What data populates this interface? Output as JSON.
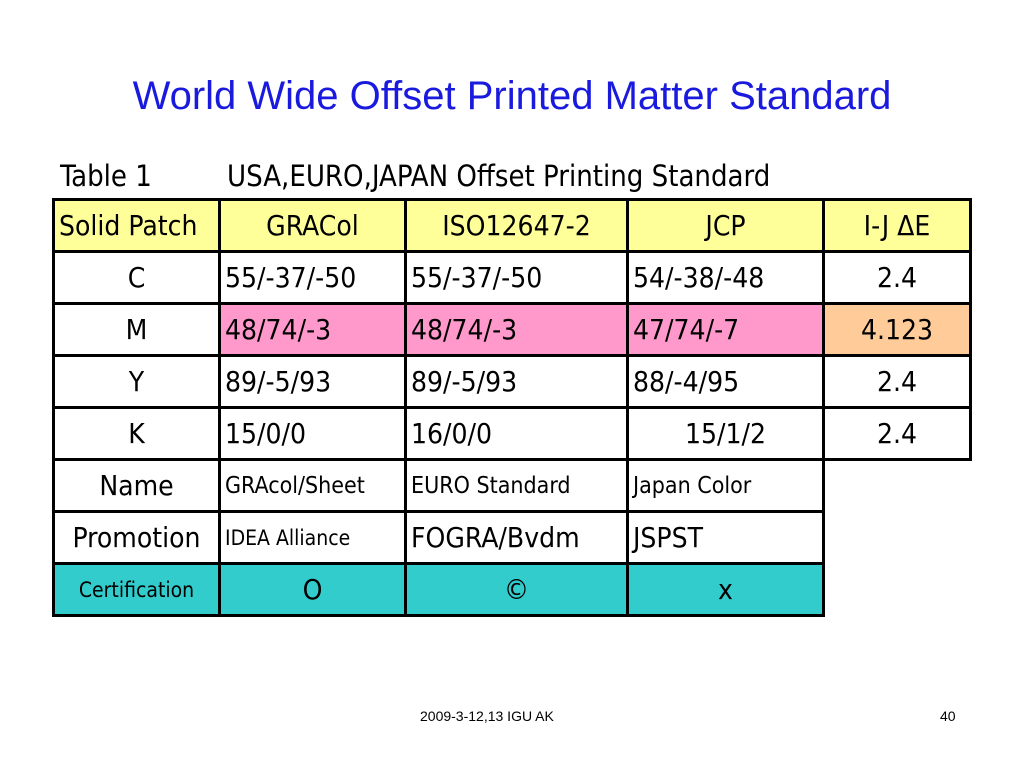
{
  "slide": {
    "title": "World Wide Offset Printed Matter Standard",
    "footer": "2009-3-12,13 IGU AK",
    "page_number": "40"
  },
  "table": {
    "caption_label": "Table 1",
    "caption_text": "USA,EURO,JAPAN Offset Printing Standard",
    "header": [
      "Solid Patch",
      "GRACol",
      "ISO12647-2",
      "JCP",
      "I-J ΔE"
    ],
    "rows": {
      "C": [
        "C",
        "55/-37/-50",
        "55/-37/-50",
        "54/-38/-48",
        "2.4"
      ],
      "M": [
        "M",
        "48/74/-3",
        "48/74/-3",
        "47/74/-7",
        "4.123"
      ],
      "Y": [
        "Y",
        "89/-5/93",
        "89/-5/93",
        "88/-4/95",
        "2.4"
      ],
      "K": [
        "K",
        "15/0/0",
        "16/0/0",
        "15/1/2",
        "2.4"
      ],
      "name": [
        "Name",
        "GRAcol/Sheet",
        "EURO Standard",
        "Japan Color"
      ],
      "promotion": [
        "Promotion",
        "IDEA Alliance",
        "FOGRA/Bvdm",
        "JSPST"
      ],
      "certification": [
        "Certification",
        "O",
        "©",
        "x"
      ]
    }
  },
  "colors": {
    "title": "#1a1adf",
    "header_fill": "#ffff99",
    "m_row_fill": "#ff99cc",
    "delta_highlight_fill": "#ffcc99",
    "certification_fill": "#33cccc"
  }
}
